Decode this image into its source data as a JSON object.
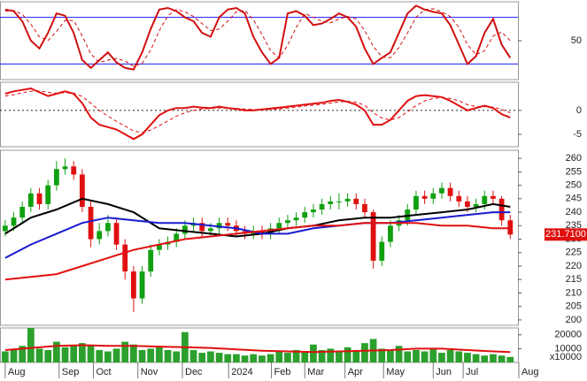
{
  "x_axis": {
    "xlim": [
      -0.4,
      59.9
    ],
    "xticks": [
      {
        "value": 0,
        "label": "Aug"
      },
      {
        "value": 6.3,
        "label": "Sep"
      },
      {
        "value": 10.3,
        "label": "Oct"
      },
      {
        "value": 15.5,
        "label": "Nov"
      },
      {
        "value": 20.7,
        "label": "Dec"
      },
      {
        "value": 26.1,
        "label": "2024"
      },
      {
        "value": 31.1,
        "label": "Feb"
      },
      {
        "value": 35,
        "label": "Mar"
      },
      {
        "value": 39.7,
        "label": "Apr"
      },
      {
        "value": 44.2,
        "label": "May"
      },
      {
        "value": 50,
        "label": "Jun"
      },
      {
        "value": 53.5,
        "label": "Jul"
      },
      {
        "value": 60,
        "label": "Aug"
      }
    ]
  },
  "chart_data": [
    {
      "type": "line",
      "ylim": [
        0,
        100
      ],
      "yticks": [
        50
      ],
      "ref_lines": [
        80,
        20
      ],
      "ref_color": "#1a1aff",
      "ref_style": "solid",
      "series": [
        {
          "color": "#d01010",
          "dash": false,
          "values": [
            90,
            88,
            75,
            50,
            40,
            60,
            85,
            82,
            60,
            25,
            15,
            25,
            35,
            22,
            15,
            13,
            35,
            65,
            90,
            92,
            88,
            80,
            75,
            60,
            55,
            80,
            90,
            92,
            85,
            55,
            35,
            20,
            28,
            85,
            88,
            82,
            70,
            72,
            78,
            85,
            80,
            68,
            40,
            20,
            28,
            35,
            60,
            85,
            95,
            90,
            87,
            85,
            70,
            45,
            20,
            30,
            60,
            78,
            45,
            28
          ]
        },
        {
          "color": "#d01010",
          "dash": true,
          "values": [
            88,
            89,
            84,
            71,
            55,
            50,
            62,
            76,
            76,
            56,
            33,
            22,
            25,
            27,
            24,
            17,
            21,
            38,
            63,
            82,
            90,
            87,
            81,
            72,
            63,
            65,
            75,
            87,
            89,
            77,
            58,
            37,
            28,
            44,
            67,
            85,
            80,
            75,
            73,
            78,
            81,
            78,
            63,
            43,
            29,
            28,
            41,
            60,
            80,
            90,
            91,
            87,
            81,
            67,
            45,
            32,
            37,
            56,
            61,
            50
          ]
        }
      ]
    },
    {
      "type": "line",
      "ylim": [
        -7.6,
        5.9
      ],
      "yticks": [
        0,
        -5
      ],
      "ref_lines": [
        0
      ],
      "ref_color": "#222222",
      "ref_style": "dotted",
      "series": [
        {
          "color": "#e01010",
          "dash": false,
          "values": [
            3.5,
            4,
            4.3,
            4.6,
            3.8,
            3,
            3.5,
            4,
            3.5,
            1.5,
            -1.5,
            -3,
            -3.5,
            -4,
            -5,
            -6,
            -5,
            -3,
            -1,
            0,
            0.5,
            0.5,
            0.8,
            0.6,
            0.5,
            0.8,
            0.5,
            0.3,
            0,
            0,
            0.2,
            0.4,
            0.6,
            0.8,
            1,
            1.2,
            1.4,
            1.6,
            2,
            2.2,
            1.8,
            1.2,
            0,
            -3,
            -3,
            -2,
            0,
            2,
            3,
            3.2,
            3,
            2.8,
            2,
            1,
            0,
            0.5,
            1,
            0.5,
            -0.8,
            -1.5
          ]
        },
        {
          "color": "#e01010",
          "dash": true,
          "values": [
            3,
            3.3,
            3.7,
            4,
            4.1,
            3.8,
            3.6,
            3.7,
            3.6,
            2.9,
            1.5,
            0,
            -1.2,
            -2.3,
            -3.3,
            -4.3,
            -4.6,
            -4.1,
            -3.2,
            -2.2,
            -1.2,
            -0.5,
            0,
            0.3,
            0.4,
            0.5,
            0.5,
            0.4,
            0.3,
            0.2,
            0.1,
            0.2,
            0.3,
            0.5,
            0.7,
            0.9,
            1.1,
            1.3,
            1.5,
            1.8,
            1.9,
            1.7,
            1.1,
            -0.5,
            -1.6,
            -2,
            -1.5,
            -0.3,
            1,
            2,
            2.5,
            2.7,
            2.5,
            2,
            1.2,
            0.8,
            0.8,
            0.7,
            0.2,
            -0.5
          ]
        }
      ]
    },
    {
      "type": "candlestick",
      "ylim": [
        198,
        263
      ],
      "yticks": [
        200,
        205,
        210,
        215,
        220,
        225,
        230,
        235,
        240,
        245,
        250,
        255,
        260
      ],
      "up_color": "#10a010",
      "down_color": "#e01010",
      "ohlc": [
        [
          233,
          237,
          231,
          235
        ],
        [
          235,
          240,
          233,
          238
        ],
        [
          238,
          244,
          236,
          242
        ],
        [
          242,
          249,
          240,
          247
        ],
        [
          247,
          249,
          241,
          243
        ],
        [
          243,
          252,
          241,
          250
        ],
        [
          250,
          259,
          248,
          256
        ],
        [
          256,
          260,
          254,
          257
        ],
        [
          257,
          259,
          252,
          254
        ],
        [
          254,
          256,
          240,
          242
        ],
        [
          242,
          244,
          227,
          230
        ],
        [
          230,
          236,
          228,
          233
        ],
        [
          233,
          239,
          231,
          236
        ],
        [
          236,
          238,
          226,
          228
        ],
        [
          228,
          230,
          215,
          218
        ],
        [
          218,
          220,
          203,
          208
        ],
        [
          208,
          220,
          206,
          218
        ],
        [
          218,
          228,
          216,
          226
        ],
        [
          226,
          230,
          224,
          228
        ],
        [
          228,
          231,
          226,
          229
        ],
        [
          229,
          234,
          227,
          232
        ],
        [
          232,
          237,
          230,
          235
        ],
        [
          235,
          238,
          233,
          236
        ],
        [
          236,
          238,
          231,
          233
        ],
        [
          233,
          236,
          231,
          234
        ],
        [
          234,
          238,
          232,
          236
        ],
        [
          236,
          238,
          233,
          235
        ],
        [
          235,
          237,
          231,
          233
        ],
        [
          233,
          235,
          230,
          232
        ],
        [
          232,
          235,
          230,
          233
        ],
        [
          233,
          235,
          230,
          232
        ],
        [
          232,
          236,
          230,
          234
        ],
        [
          234,
          238,
          232,
          236
        ],
        [
          236,
          239,
          234,
          237
        ],
        [
          237,
          240,
          235,
          238
        ],
        [
          238,
          242,
          236,
          240
        ],
        [
          240,
          243,
          238,
          241
        ],
        [
          241,
          245,
          239,
          243
        ],
        [
          243,
          246,
          241,
          244
        ],
        [
          244,
          247,
          241,
          244
        ],
        [
          244,
          247,
          242,
          245
        ],
        [
          245,
          247,
          241,
          243
        ],
        [
          243,
          245,
          238,
          240
        ],
        [
          240,
          241,
          219,
          222
        ],
        [
          222,
          231,
          220,
          229
        ],
        [
          229,
          237,
          227,
          235
        ],
        [
          235,
          239,
          233,
          237
        ],
        [
          237,
          243,
          235,
          241
        ],
        [
          241,
          248,
          239,
          246
        ],
        [
          246,
          248,
          243,
          245
        ],
        [
          245,
          249,
          243,
          247
        ],
        [
          247,
          251,
          245,
          249
        ],
        [
          249,
          251,
          244,
          246
        ],
        [
          246,
          248,
          242,
          244
        ],
        [
          244,
          246,
          240,
          242
        ],
        [
          242,
          245,
          240,
          243
        ],
        [
          243,
          248,
          241,
          246
        ],
        [
          246,
          248,
          243,
          245
        ],
        [
          245,
          246,
          235,
          237
        ],
        [
          237,
          239,
          230,
          231.71
        ]
      ],
      "price_label": {
        "value": 231.71,
        "label": "231.7100"
      },
      "price_label_color": "#e01010",
      "series": [
        {
          "color": "#000000",
          "dash": false,
          "x": [
            0,
            3,
            6,
            9,
            12,
            15,
            18,
            21,
            24,
            27,
            30,
            33,
            36,
            39,
            42,
            45,
            48,
            51,
            54,
            57,
            59
          ],
          "values": [
            232,
            238,
            241,
            245,
            243,
            240,
            234,
            233,
            232,
            231,
            232,
            234,
            235,
            237,
            238,
            238,
            239,
            240,
            241,
            243,
            242
          ]
        },
        {
          "color": "#1a1ad0",
          "dash": false,
          "x": [
            0,
            3,
            6,
            9,
            12,
            15,
            18,
            21,
            24,
            27,
            30,
            33,
            36,
            39,
            42,
            45,
            48,
            51,
            54,
            57,
            59
          ],
          "values": [
            223,
            228,
            232,
            236,
            238,
            237,
            236,
            236,
            235,
            234,
            232,
            232,
            234,
            235,
            236,
            236,
            237,
            238,
            239,
            240,
            240
          ]
        },
        {
          "color": "#e01010",
          "dash": false,
          "x": [
            0,
            3,
            6,
            9,
            12,
            15,
            18,
            21,
            24,
            27,
            30,
            33,
            36,
            39,
            42,
            45,
            48,
            51,
            54,
            57,
            59
          ],
          "values": [
            215,
            216,
            217,
            220,
            223,
            226,
            228,
            230,
            231,
            232,
            233,
            234,
            235,
            235,
            236,
            236,
            236,
            235,
            235,
            234,
            234
          ]
        }
      ]
    },
    {
      "type": "bar",
      "ylim": [
        0,
        25000
      ],
      "yticks": [
        20000,
        10000
      ],
      "multiplier_label": "x10000",
      "color": "#2ca02c",
      "values": [
        8000,
        9000,
        12000,
        25000,
        10000,
        9000,
        15000,
        11000,
        12000,
        14000,
        13000,
        9000,
        8000,
        10000,
        15000,
        13000,
        9000,
        10000,
        11000,
        9000,
        8000,
        22000,
        9000,
        7000,
        8000,
        7000,
        6000,
        6000,
        5000,
        6000,
        5000,
        6000,
        8000,
        7000,
        9000,
        8000,
        13000,
        9000,
        10000,
        8000,
        11000,
        9000,
        14000,
        17000,
        10000,
        9000,
        12000,
        8000,
        9000,
        8000,
        10000,
        7000,
        9000,
        8000,
        7000,
        6000,
        5000,
        6000,
        5000,
        4000
      ],
      "series": [
        {
          "color": "#e01010",
          "dash": false,
          "x": [
            0,
            3,
            6,
            9,
            12,
            15,
            18,
            21,
            24,
            27,
            30,
            33,
            36,
            39,
            42,
            45,
            48,
            51,
            54,
            57,
            59
          ],
          "values": [
            9000,
            10500,
            12000,
            12500,
            12000,
            12000,
            11500,
            11000,
            10500,
            9500,
            8500,
            8000,
            7500,
            8000,
            8500,
            9000,
            10000,
            10000,
            9000,
            8000,
            7500
          ]
        }
      ]
    }
  ]
}
